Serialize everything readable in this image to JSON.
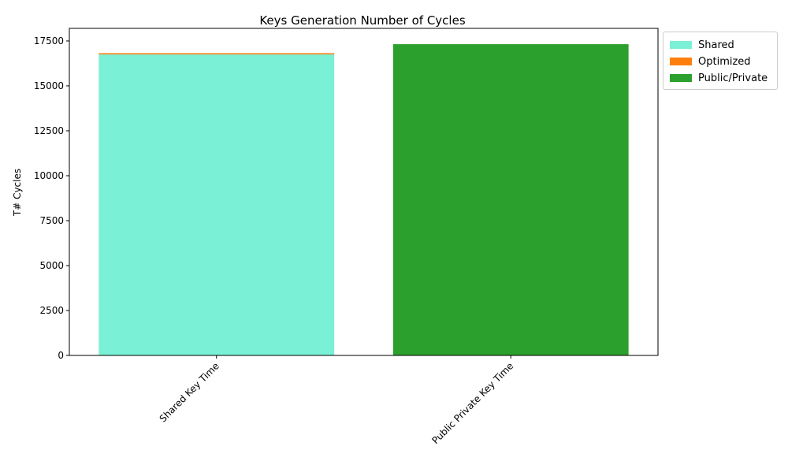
{
  "chart_data": {
    "type": "bar",
    "stacked": true,
    "title": "Keys Generation Number of Cycles",
    "xlabel": "",
    "ylabel": "T# Cycles",
    "categories": [
      "Shared Key Time",
      "Public Private Key Time"
    ],
    "ylim": [
      0,
      18200
    ],
    "yticks": [
      0,
      2500,
      5000,
      7500,
      10000,
      12500,
      15000,
      17500
    ],
    "series": [
      {
        "name": "Shared",
        "values": [
          16750,
          0
        ],
        "color": "#7af0d6"
      },
      {
        "name": "Optimized",
        "values": [
          70,
          0
        ],
        "color": "#ff7f0e"
      },
      {
        "name": "Public/Private",
        "values": [
          0,
          17320
        ],
        "color": "#2ca02c"
      }
    ],
    "legend_position": "upper-right-outside",
    "grid": false
  }
}
